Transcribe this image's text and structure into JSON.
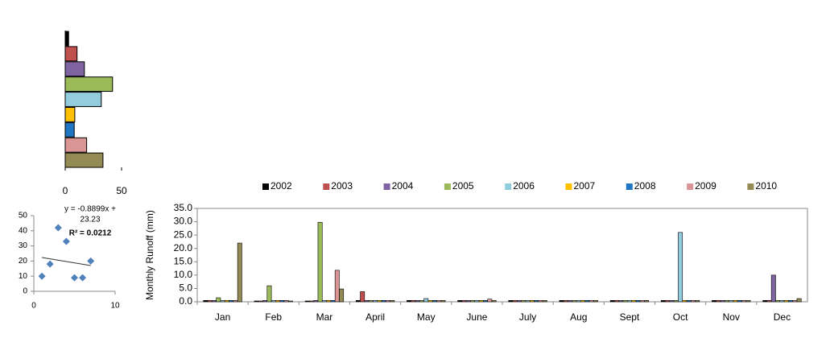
{
  "chart_data": [
    {
      "type": "hbar",
      "categories": [
        null,
        null,
        null,
        null,
        null,
        null,
        null,
        null,
        null
      ],
      "values": [
        3,
        10.5,
        17,
        42,
        32,
        8.5,
        8,
        19,
        33.5
      ],
      "colors": [
        "#000000",
        "#c0504d",
        "#8064a2",
        "#9bbb59",
        "#93cddd",
        "#ffc000",
        "#1f77c4",
        "#d99694",
        "#948a54"
      ],
      "xlim": [
        0,
        50
      ],
      "xticks": [
        0,
        50
      ]
    },
    {
      "type": "scatter",
      "x": [
        1,
        2,
        3,
        4,
        5,
        6,
        7
      ],
      "values": [
        10,
        18,
        42,
        33,
        9,
        9,
        20
      ],
      "color": "#4f81bd",
      "xlim": [
        0,
        10
      ],
      "xticks": [
        0,
        10
      ],
      "ylim": [
        0,
        50
      ],
      "yticks": [
        0,
        10,
        20,
        30,
        40,
        50
      ],
      "trendline": {
        "slope": -0.8899,
        "intercept": 23.23
      },
      "annotations": [
        "y = -0.8899x +",
        "23.23",
        "R² = 0.0212"
      ]
    },
    {
      "type": "grouped-bar",
      "ylabel": "Monthly  Runoff (mm)",
      "categories": [
        "Jan",
        "Feb",
        "Mar",
        "April",
        "May",
        "June",
        "July",
        "Aug",
        "Sept",
        "Oct",
        "Nov",
        "Dec"
      ],
      "series": [
        {
          "name": "2002",
          "color": "#000000",
          "values": [
            0.5,
            0.3,
            0.3,
            0.5,
            0.5,
            0.5,
            0.5,
            0.5,
            0.5,
            0.5,
            0.5,
            0.5
          ]
        },
        {
          "name": "2003",
          "color": "#c0504d",
          "values": [
            0.5,
            0.3,
            0.3,
            3.8,
            0.5,
            0.5,
            0.5,
            0.5,
            0.5,
            0.5,
            0.5,
            0.5
          ]
        },
        {
          "name": "2004",
          "color": "#8064a2",
          "values": [
            0.5,
            0.5,
            0.5,
            0.5,
            0.5,
            0.5,
            0.5,
            0.5,
            0.5,
            0.5,
            0.5,
            10
          ]
        },
        {
          "name": "2005",
          "color": "#9bbb59",
          "values": [
            1.5,
            6,
            29.8,
            0.5,
            0.5,
            0.5,
            0.5,
            0.5,
            0.5,
            0.5,
            0.5,
            0.5
          ]
        },
        {
          "name": "2006",
          "color": "#93cddd",
          "values": [
            0.5,
            0.5,
            0.5,
            0.5,
            1.2,
            0.5,
            0.5,
            0.5,
            0.5,
            26,
            0.5,
            0.5
          ]
        },
        {
          "name": "2007",
          "color": "#ffc000",
          "values": [
            0.5,
            0.5,
            0.5,
            0.5,
            0.5,
            0.5,
            0.5,
            0.5,
            0.5,
            0.5,
            0.5,
            0.5
          ]
        },
        {
          "name": "2008",
          "color": "#1f77c4",
          "values": [
            0.5,
            0.5,
            0.5,
            0.5,
            0.5,
            0.5,
            0.5,
            0.5,
            0.5,
            0.5,
            0.5,
            0.5
          ]
        },
        {
          "name": "2009",
          "color": "#d99694",
          "values": [
            0.5,
            0.5,
            11.8,
            0.5,
            0.5,
            1.0,
            0.5,
            0.5,
            0.5,
            0.5,
            0.5,
            0.5
          ]
        },
        {
          "name": "2010",
          "color": "#948a54",
          "values": [
            22,
            0.3,
            4.8,
            0.5,
            0.5,
            0.5,
            0.5,
            0.5,
            0.5,
            0.5,
            0.5,
            1.2
          ]
        }
      ],
      "ylim": [
        0,
        35
      ],
      "yticks": [
        {
          "value": 0,
          "label": "0.0"
        },
        {
          "value": 5,
          "label": "5.0"
        },
        {
          "value": 10,
          "label": "10.0"
        },
        {
          "value": 15,
          "label": "15.0"
        },
        {
          "value": 20,
          "label": "20.0"
        },
        {
          "value": 25,
          "label": "25.0"
        },
        {
          "value": 30,
          "label": "30.0"
        },
        {
          "value": 35,
          "label": "35.0"
        }
      ],
      "legend": "top"
    }
  ]
}
